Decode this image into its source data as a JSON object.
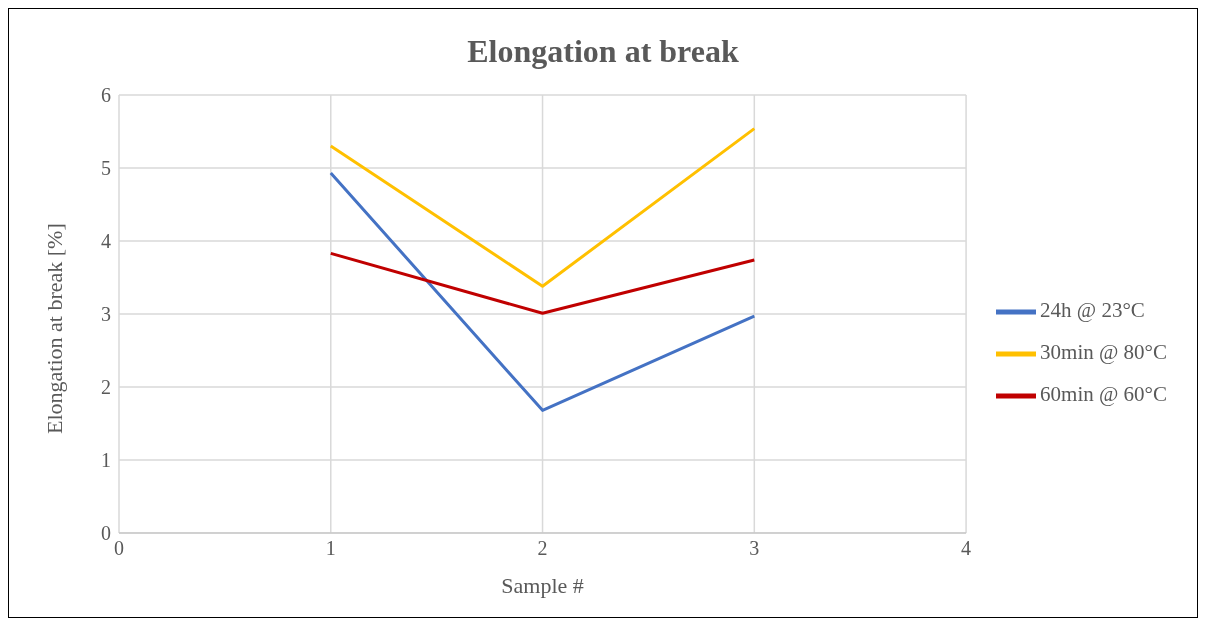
{
  "chart_data": {
    "type": "line",
    "title": "Elongation at break",
    "xlabel": "Sample #",
    "ylabel": "Elongation at break [%]",
    "x": [
      1,
      2,
      3
    ],
    "series": [
      {
        "name": "24h @ 23°C",
        "color": "#4472c4",
        "values": [
          4.93,
          1.68,
          2.97
        ]
      },
      {
        "name": "60min @ 60°C",
        "color": "#c00000",
        "values": [
          3.83,
          3.01,
          3.74
        ]
      },
      {
        "name": "30min @ 80°C",
        "color": "#ffc000",
        "values": [
          5.3,
          3.38,
          5.54
        ]
      }
    ],
    "xlim": [
      0,
      4
    ],
    "xticks": [
      0,
      1,
      2,
      3,
      4
    ],
    "ylim": [
      0,
      6
    ],
    "yticks": [
      0,
      1,
      2,
      3,
      4,
      5,
      6
    ],
    "grid": true,
    "legend": "right",
    "marker": "none",
    "line_style": "solid"
  }
}
